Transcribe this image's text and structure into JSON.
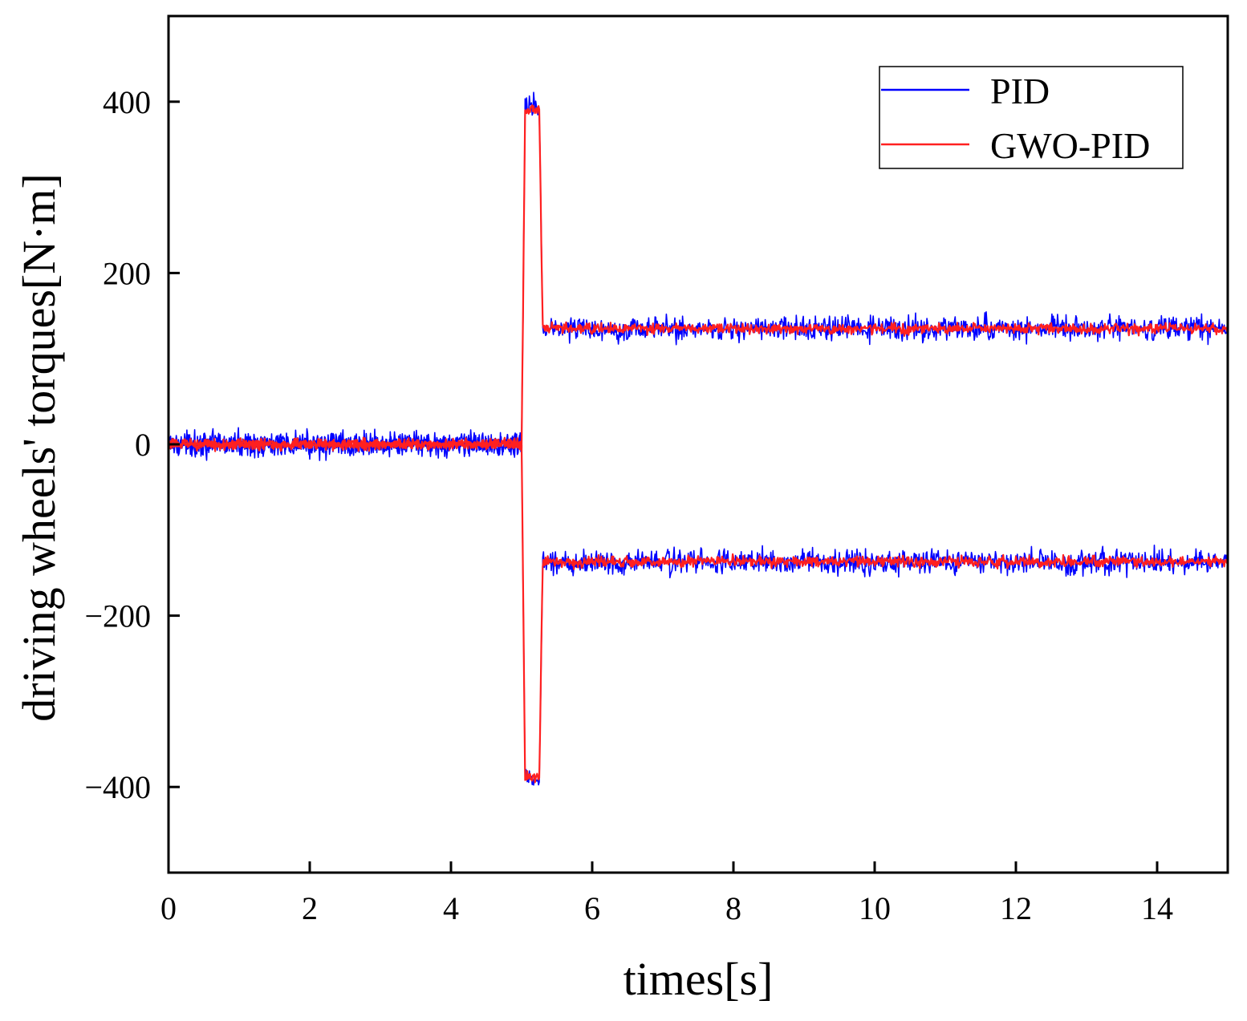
{
  "chart_data": {
    "type": "line",
    "title": "",
    "xlabel": "times[s]",
    "ylabel": "driving wheels' torques[N·m]",
    "xlim": [
      0,
      15
    ],
    "ylim": [
      -500,
      500
    ],
    "xticks": [
      0,
      2,
      4,
      6,
      8,
      10,
      12,
      14
    ],
    "yticks": [
      -400,
      -200,
      0,
      200,
      400
    ],
    "xtick_labels": [
      "0",
      "2",
      "4",
      "6",
      "8",
      "10",
      "12",
      "14"
    ],
    "ytick_labels": [
      "−400",
      "−200",
      "0",
      "200",
      "400"
    ],
    "grid": false,
    "legend_position": "top-right",
    "series": [
      {
        "name": "PID",
        "color": "#0000ff",
        "noise_amplitude": 14,
        "branches": [
          {
            "x": [
              0,
              5.0,
              5.05,
              5.25,
              5.3,
              15
            ],
            "y": [
              0,
              0,
              395,
              395,
              135,
              135
            ]
          },
          {
            "x": [
              0,
              5.0,
              5.05,
              5.25,
              5.3,
              15
            ],
            "y": [
              0,
              0,
              -390,
              -390,
              -137,
              -137
            ]
          }
        ]
      },
      {
        "name": "GWO-PID",
        "color": "#ff2020",
        "noise_amplitude": 6,
        "branches": [
          {
            "x": [
              0,
              5.0,
              5.05,
              5.25,
              5.3,
              15
            ],
            "y": [
              0,
              0,
              390,
              390,
              135,
              135
            ]
          },
          {
            "x": [
              0,
              5.0,
              5.05,
              5.25,
              5.3,
              15
            ],
            "y": [
              0,
              0,
              -388,
              -388,
              -137,
              -137
            ]
          }
        ]
      }
    ]
  }
}
